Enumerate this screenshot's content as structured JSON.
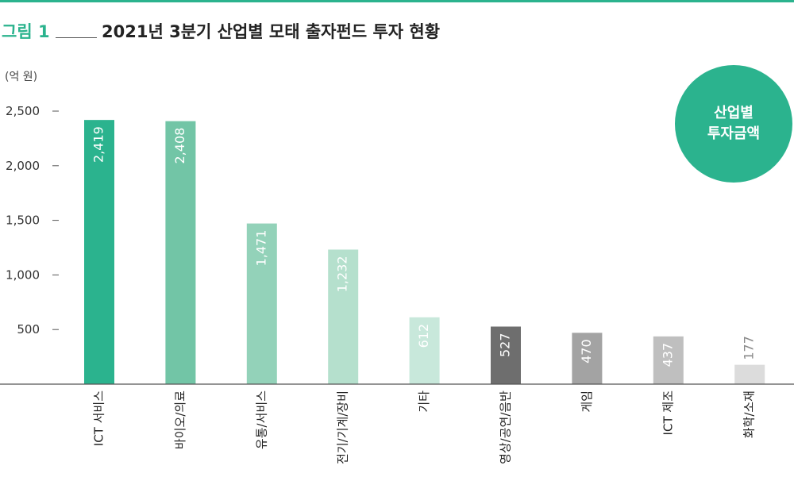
{
  "header": {
    "figure_label": "그림 1",
    "title": "2021년 3분기 산업별 모태 출자펀드 투자 현황"
  },
  "unit_label": "(억 원)",
  "badge": {
    "line1": "산업별",
    "line2": "투자금액"
  },
  "chart_data": {
    "type": "bar",
    "categories": [
      "ICT 서비스",
      "바이오/의료",
      "유통/서비스",
      "전기/기계/장비",
      "기타",
      "영상/공연/음반",
      "게임",
      "ICT 제조",
      "화학/소재"
    ],
    "values": [
      2419,
      2408,
      1471,
      1232,
      612,
      527,
      470,
      437,
      177
    ],
    "value_labels": [
      "2,419",
      "2,408",
      "1,471",
      "1,232",
      "612",
      "527",
      "470",
      "437",
      "177"
    ],
    "yticks": [
      500,
      1000,
      1500,
      2000,
      2500
    ],
    "ytick_labels": [
      "500",
      "1,000",
      "1,500",
      "2,000",
      "2,500"
    ],
    "ylim": [
      0,
      2500
    ],
    "colors": [
      "#2bb38e",
      "#72c5a6",
      "#93d2b9",
      "#b5e0cd",
      "#c8e8db",
      "#6e6e6e",
      "#a3a3a3",
      "#bfbfbf",
      "#dcdcdc"
    ],
    "label_colors": [
      "#ffffff",
      "#ffffff",
      "#ffffff",
      "#ffffff",
      "#ffffff",
      "#ffffff",
      "#ffffff",
      "#ffffff",
      "#8a8a8a"
    ],
    "grid": false
  }
}
